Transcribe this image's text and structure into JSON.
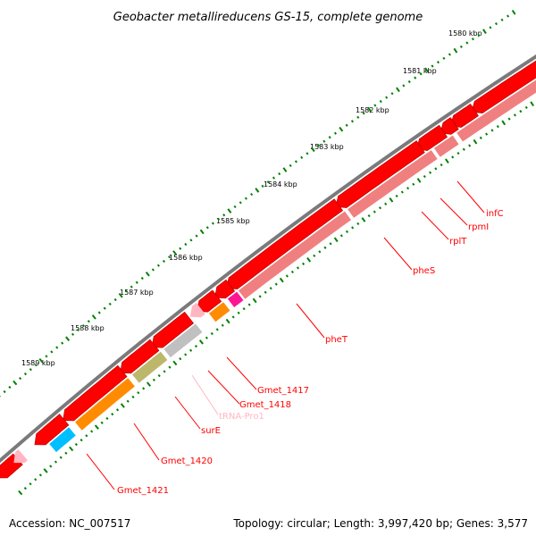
{
  "title": "Geobacter metallireducens GS-15, complete genome",
  "accession": "Accession: NC_007517",
  "summary": "Topology: circular; Length: 3,997,420 bp; Genes: 3,577",
  "kbp_labels": [
    "1580 kbp",
    "1581 kbp",
    "1582 kbp",
    "1583 kbp",
    "1584 kbp",
    "1585 kbp",
    "1586 kbp",
    "1587 kbp",
    "1588 kbp",
    "1589 kbp"
  ],
  "colors": {
    "backbone": "#808080",
    "cds": "#ff0000",
    "gene": "#f08080",
    "label": "#ff0000",
    "trna": "#ffb6c1",
    "tick": "#008000",
    "feature_grey": "#c0c0c0",
    "feature_orange": "#ff8c00",
    "feature_olive": "#bdb76b",
    "feature_blue": "#00bfff",
    "feature_magenta": "#ff1493"
  },
  "gene_labels": {
    "infC": "infC",
    "rpmI": "rpmI",
    "rplT": "rplT",
    "pheS": "pheS",
    "pheT": "pheT",
    "Gmet_1417": "Gmet_1417",
    "Gmet_1418": "Gmet_1418",
    "tRNA_Pro1": "tRNA-Pro1",
    "surE": "surE",
    "Gmet_1420": "Gmet_1420",
    "Gmet_1421": "Gmet_1421"
  }
}
